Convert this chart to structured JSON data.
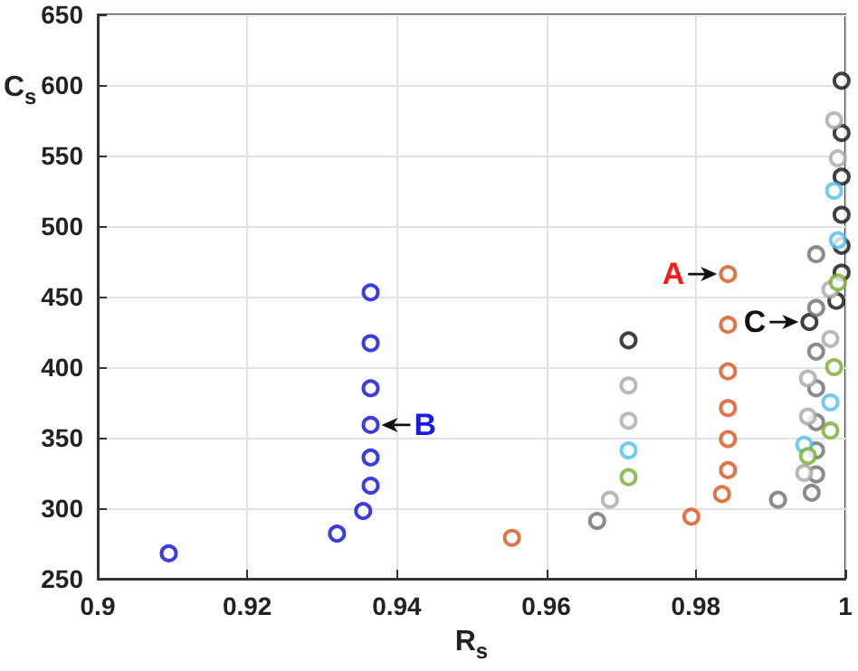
{
  "chart_data": {
    "type": "scatter",
    "xlabel": "R$_{s}$",
    "ylabel": "C$_{s}$",
    "xlim": [
      0.9,
      1
    ],
    "xticks": [
      0.9,
      0.92,
      0.94,
      0.96,
      0.98,
      1
    ],
    "ylim": [
      250,
      650
    ],
    "yticks": [
      250,
      300,
      350,
      400,
      450,
      500,
      550,
      600,
      650
    ],
    "grid": true,
    "marker": "circle",
    "series": [
      {
        "color": "#0b0bd8",
        "x": [
          0.9095,
          0.932,
          0.9355,
          0.9365,
          0.9365,
          0.9365,
          0.9365,
          0.9365,
          0.9365
        ],
        "values": [
          268,
          282,
          298,
          316,
          336,
          359,
          385,
          417,
          453
        ]
      },
      {
        "color": "#d95319",
        "x": [
          0.9554,
          0.9794,
          0.9835,
          0.9843,
          0.9843,
          0.9843,
          0.9843,
          0.9843,
          0.9843
        ],
        "values": [
          279,
          294,
          310,
          327,
          349,
          371,
          397,
          430,
          466
        ]
      },
      {
        "color": "#111111",
        "x": [
          0.971,
          0.9952,
          0.9988,
          0.9995,
          0.9995,
          0.9995,
          0.9995,
          0.9995,
          0.9995
        ],
        "values": [
          419,
          432,
          447,
          467,
          486,
          508,
          535,
          566,
          603
        ]
      },
      {
        "color": "#6e6e6e",
        "x": [
          0.9668,
          0.991,
          0.9955,
          0.9961,
          0.9961,
          0.9961,
          0.9961,
          0.9961,
          0.9961,
          0.9961
        ],
        "values": [
          291,
          306,
          311,
          324,
          341,
          361,
          385,
          411,
          442,
          480
        ]
      },
      {
        "color": "#a8a8a8",
        "x": [
          0.971,
          0.971,
          0.9685,
          0.9945,
          0.995,
          0.995,
          0.998,
          0.998,
          0.999,
          0.9985
        ],
        "values": [
          387,
          362,
          306,
          325,
          365,
          392,
          420,
          455,
          548,
          575
        ]
      },
      {
        "color": "#4dbeee",
        "x": [
          0.971,
          0.9945,
          0.998,
          0.999,
          0.9985
        ],
        "values": [
          341,
          345,
          375,
          490,
          525
        ]
      },
      {
        "color": "#77ac30",
        "x": [
          0.971,
          0.995,
          0.998,
          0.9985,
          0.999
        ],
        "values": [
          322,
          337,
          355,
          400,
          460
        ]
      }
    ],
    "annotations": [
      {
        "text": "A",
        "x": 0.9843,
        "y": 466
      },
      {
        "text": "B",
        "x": 0.9365,
        "y": 359
      },
      {
        "text": "C",
        "x": 0.9952,
        "y": 432
      }
    ]
  }
}
